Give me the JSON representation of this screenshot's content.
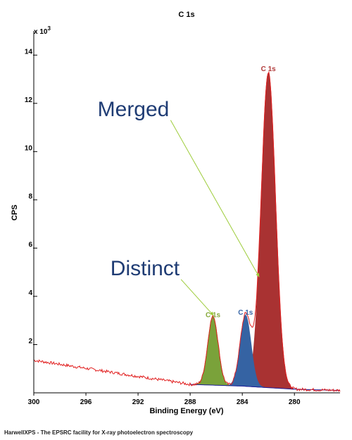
{
  "chart_data": {
    "type": "line",
    "title": "C 1s",
    "xlabel": "Binding Energy (eV)",
    "ylabel": "CPS",
    "y_multiplier_label": "x 10",
    "y_multiplier_exp": "3",
    "xlim": [
      300,
      276.5
    ],
    "x_reversed": true,
    "ylim": [
      0,
      15
    ],
    "x_ticks": [
      300,
      296,
      292,
      288,
      284,
      280
    ],
    "y_ticks": [
      2,
      4,
      6,
      8,
      10,
      12,
      14
    ],
    "grid": false,
    "series": [
      {
        "name": "C 1s",
        "label": "C 1s",
        "color": "#a93232",
        "label_color": "#b13a3a",
        "center": 282.0,
        "height": 13.05,
        "sigma": 0.55
      },
      {
        "name": "C 1s",
        "label": "C 1s",
        "color": "#3563a3",
        "label_color": "#3a68a8",
        "center": 283.75,
        "height": 2.95,
        "sigma": 0.42
      },
      {
        "name": "C 1s",
        "label": "C 1s",
        "color": "#7aa23a",
        "label_color": "#86a83a",
        "center": 286.25,
        "height": 2.85,
        "sigma": 0.4
      }
    ],
    "background": {
      "name": "background",
      "color": "#1a1a9a",
      "x": [
        288,
        284,
        280,
        276.5
      ],
      "y": [
        0.35,
        0.28,
        0.15,
        0.1
      ]
    },
    "envelope_color": "#e11f1f",
    "annotations": [
      {
        "text": "Merged",
        "from_x": 289.5,
        "from_y": 11.3,
        "to_x": 282.7,
        "to_y": 4.8,
        "color": "#9dcc3a"
      },
      {
        "text": "Distinct",
        "from_x": 288.7,
        "from_y": 4.7,
        "to_x": 286.2,
        "to_y": 3.2,
        "color": "#9dcc3a"
      }
    ]
  },
  "footer": "HarwellXPS - The EPSRC facility for X-ray photoelectron spectroscopy"
}
